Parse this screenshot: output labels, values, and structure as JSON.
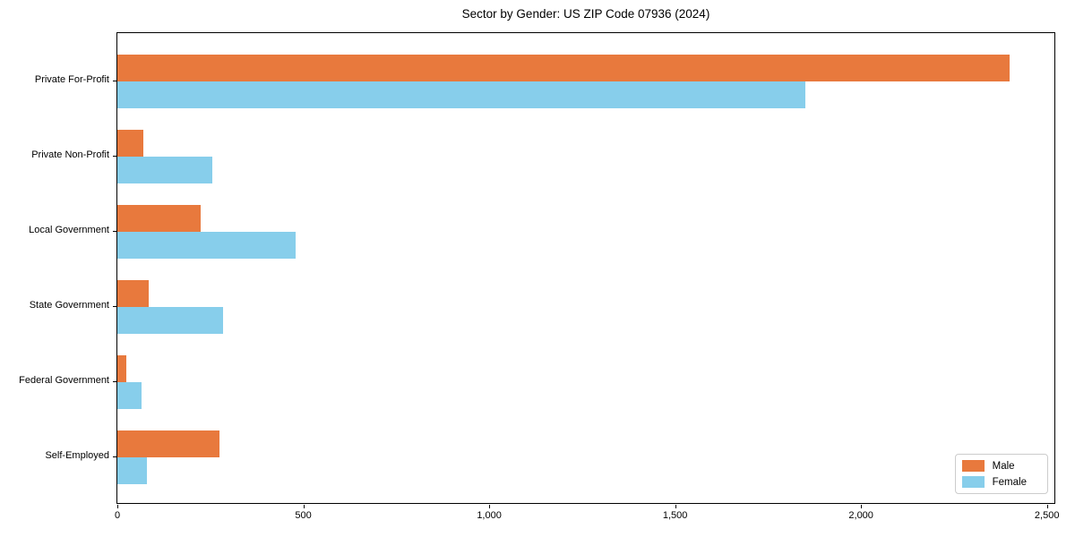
{
  "chart_data": {
    "type": "bar",
    "orientation": "horizontal",
    "title": "Sector by Gender: US ZIP Code 07936 (2024)",
    "categories": [
      "Private For-Profit",
      "Private Non-Profit",
      "Local Government",
      "State Government",
      "Federal Government",
      "Self-Employed"
    ],
    "series": [
      {
        "name": "Male",
        "color": "#E8793D",
        "values": [
          2400,
          70,
          225,
          85,
          25,
          275
        ]
      },
      {
        "name": "Female",
        "color": "#87CEEB",
        "values": [
          1850,
          255,
          480,
          285,
          65,
          80
        ]
      }
    ],
    "xlabel": "",
    "ylabel": "",
    "x_ticks": [
      "0",
      "500",
      "1,000",
      "1,500",
      "2,000",
      "2,500"
    ],
    "x_tick_values": [
      0,
      500,
      1000,
      1500,
      2000,
      2500
    ],
    "xlim": [
      0,
      2520
    ],
    "grid": false,
    "legend_position": "lower right",
    "legend_entries": [
      "Male",
      "Female"
    ]
  }
}
